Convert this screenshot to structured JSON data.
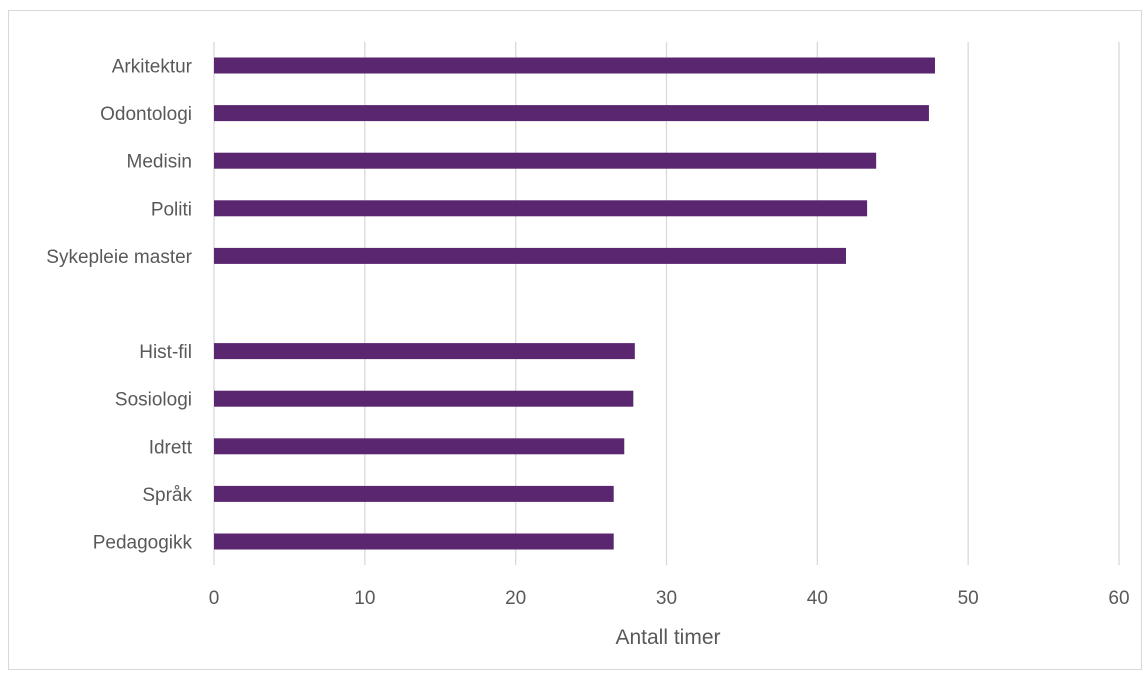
{
  "chart_data": {
    "type": "bar",
    "orientation": "horizontal",
    "categories": [
      "Arkitektur",
      "Odontologi",
      "Medisin",
      "Politi",
      "Sykepleie master",
      "",
      "Hist-fil",
      "Sosiologi",
      "Idrett",
      "Språk",
      "Pedagogikk"
    ],
    "values": [
      47.8,
      47.4,
      43.9,
      43.3,
      41.9,
      null,
      27.9,
      27.8,
      27.2,
      26.5,
      26.5
    ],
    "title": "",
    "xlabel": "Antall timer",
    "ylabel": "",
    "xlim": [
      0,
      60
    ],
    "xticks": [
      0,
      10,
      20,
      30,
      40,
      50,
      60
    ],
    "grid": true,
    "legend": "none",
    "bar_color": "#5b2670",
    "grid_color": "#d9d9d9"
  }
}
